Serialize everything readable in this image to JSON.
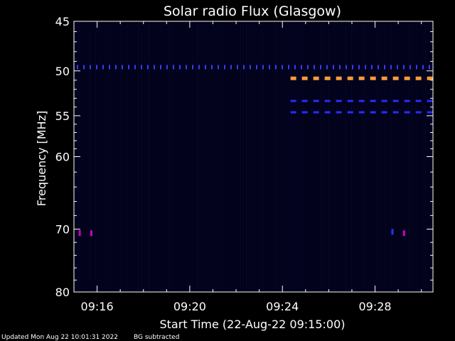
{
  "chart_data": {
    "type": "heatmap",
    "title": "Solar radio Flux (Glasgow)",
    "xlabel": "Start Time (22-Aug-22 09:15:00)",
    "ylabel": "Frequency [MHz]",
    "xlim": [
      "09:15:00",
      "09:30:30"
    ],
    "ylim": [
      80,
      45
    ],
    "y_scale": "log",
    "x_ticks": [
      "09:16",
      "09:20",
      "09:24",
      "09:28"
    ],
    "y_ticks": [
      45,
      50,
      55,
      60,
      70,
      80
    ],
    "features": [
      {
        "kind": "dotted_band",
        "frequency_mhz": 49.6,
        "from": "09:15:00",
        "to": "09:30:30",
        "color": "#3a3aff"
      },
      {
        "kind": "dashed_band",
        "frequency_mhz": 50.8,
        "from": "09:24:10",
        "to": "09:30:30",
        "color": "#ff9a3c"
      },
      {
        "kind": "dashed_band",
        "frequency_mhz": 53.3,
        "from": "09:24:10",
        "to": "09:30:30",
        "color": "#2b2bff"
      },
      {
        "kind": "dashed_band",
        "frequency_mhz": 54.6,
        "from": "09:24:10",
        "to": "09:30:30",
        "color": "#2b2bff"
      },
      {
        "kind": "spot",
        "frequency_mhz": 70.6,
        "time": "09:15:15",
        "color": "#d000c0"
      },
      {
        "kind": "spot",
        "frequency_mhz": 70.6,
        "time": "09:15:45",
        "color": "#d000c0"
      },
      {
        "kind": "spot",
        "frequency_mhz": 70.6,
        "time": "09:29:15",
        "color": "#d000c0"
      },
      {
        "kind": "spot",
        "frequency_mhz": 70.4,
        "time": "09:28:45",
        "color": "#3030ff"
      }
    ]
  },
  "footer": {
    "updated": "Updated Mon Aug 22 10:01:31 2022",
    "bg_note": "BG subtracted"
  }
}
